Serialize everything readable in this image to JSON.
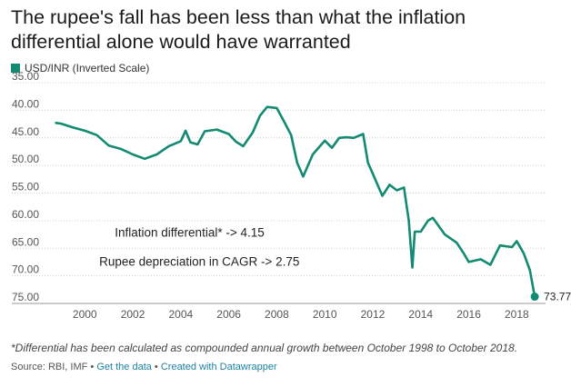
{
  "chart_data": {
    "type": "line",
    "title": "The rupee's fall has been less than what the inflation differential alone would have warranted",
    "series": [
      {
        "name": "USD/INR (Inverted Scale)",
        "color": "#138a72",
        "points": [
          [
            1998.8,
            42.3
          ],
          [
            1999.0,
            42.4
          ],
          [
            1999.5,
            43.1
          ],
          [
            2000.0,
            43.7
          ],
          [
            2000.5,
            44.5
          ],
          [
            2001.0,
            46.4
          ],
          [
            2001.5,
            47.0
          ],
          [
            2002.0,
            48.0
          ],
          [
            2002.5,
            48.8
          ],
          [
            2003.0,
            48.0
          ],
          [
            2003.5,
            46.5
          ],
          [
            2004.0,
            45.6
          ],
          [
            2004.2,
            43.7
          ],
          [
            2004.4,
            45.8
          ],
          [
            2004.7,
            46.2
          ],
          [
            2005.0,
            43.8
          ],
          [
            2005.5,
            43.5
          ],
          [
            2006.0,
            44.3
          ],
          [
            2006.3,
            45.7
          ],
          [
            2006.6,
            46.5
          ],
          [
            2007.0,
            44.0
          ],
          [
            2007.3,
            41.0
          ],
          [
            2007.6,
            39.4
          ],
          [
            2008.0,
            39.6
          ],
          [
            2008.3,
            42.0
          ],
          [
            2008.6,
            44.5
          ],
          [
            2008.85,
            49.5
          ],
          [
            2009.1,
            52.0
          ],
          [
            2009.3,
            50.0
          ],
          [
            2009.5,
            48.0
          ],
          [
            2009.8,
            46.5
          ],
          [
            2010.0,
            45.5
          ],
          [
            2010.3,
            46.8
          ],
          [
            2010.6,
            45.0
          ],
          [
            2010.9,
            44.9
          ],
          [
            2011.2,
            45.0
          ],
          [
            2011.6,
            44.3
          ],
          [
            2011.8,
            49.5
          ],
          [
            2012.0,
            51.5
          ],
          [
            2012.4,
            55.5
          ],
          [
            2012.7,
            53.5
          ],
          [
            2013.0,
            54.5
          ],
          [
            2013.3,
            54.0
          ],
          [
            2013.5,
            60.0
          ],
          [
            2013.65,
            68.5
          ],
          [
            2013.75,
            62.0
          ],
          [
            2014.0,
            62.0
          ],
          [
            2014.3,
            60.0
          ],
          [
            2014.5,
            59.5
          ],
          [
            2015.0,
            62.5
          ],
          [
            2015.5,
            64.0
          ],
          [
            2015.8,
            66.0
          ],
          [
            2016.0,
            67.5
          ],
          [
            2016.5,
            67.0
          ],
          [
            2016.9,
            68.0
          ],
          [
            2017.3,
            64.5
          ],
          [
            2017.8,
            64.8
          ],
          [
            2018.0,
            63.7
          ],
          [
            2018.3,
            66.0
          ],
          [
            2018.55,
            69.0
          ],
          [
            2018.75,
            73.77
          ]
        ]
      }
    ],
    "x_ticks": [
      2000,
      2002,
      2004,
      2006,
      2008,
      2010,
      2012,
      2014,
      2016,
      2018
    ],
    "y_ticks": [
      35,
      40,
      45,
      50,
      55,
      60,
      65,
      70,
      75
    ],
    "y_tick_labels": [
      "35.00",
      "40.00",
      "45.00",
      "50.00",
      "55.00",
      "60.00",
      "65.00",
      "70.00",
      "75.00"
    ],
    "xlim": [
      1998.55,
      2019.2
    ],
    "ylim": [
      35,
      75
    ],
    "y_inverted": true,
    "grid": "horizontal-dotted",
    "end_label": "73.77",
    "annotations": [
      {
        "text": "Inflation differential* -> 4.15",
        "x": 2001.25,
        "y": 62.9
      },
      {
        "text": "Rupee depreciation in CAGR -> 2.75",
        "x": 2000.6,
        "y": 68.2
      }
    ],
    "footnote": "*Differential has been calculated as compounded annual growth between October 1998 to October 2018.",
    "source_prefix": "Source: RBI, IMF • ",
    "source_get_data": "Get the data",
    "source_sep": " • ",
    "source_created": "Created with Datawrapper"
  }
}
